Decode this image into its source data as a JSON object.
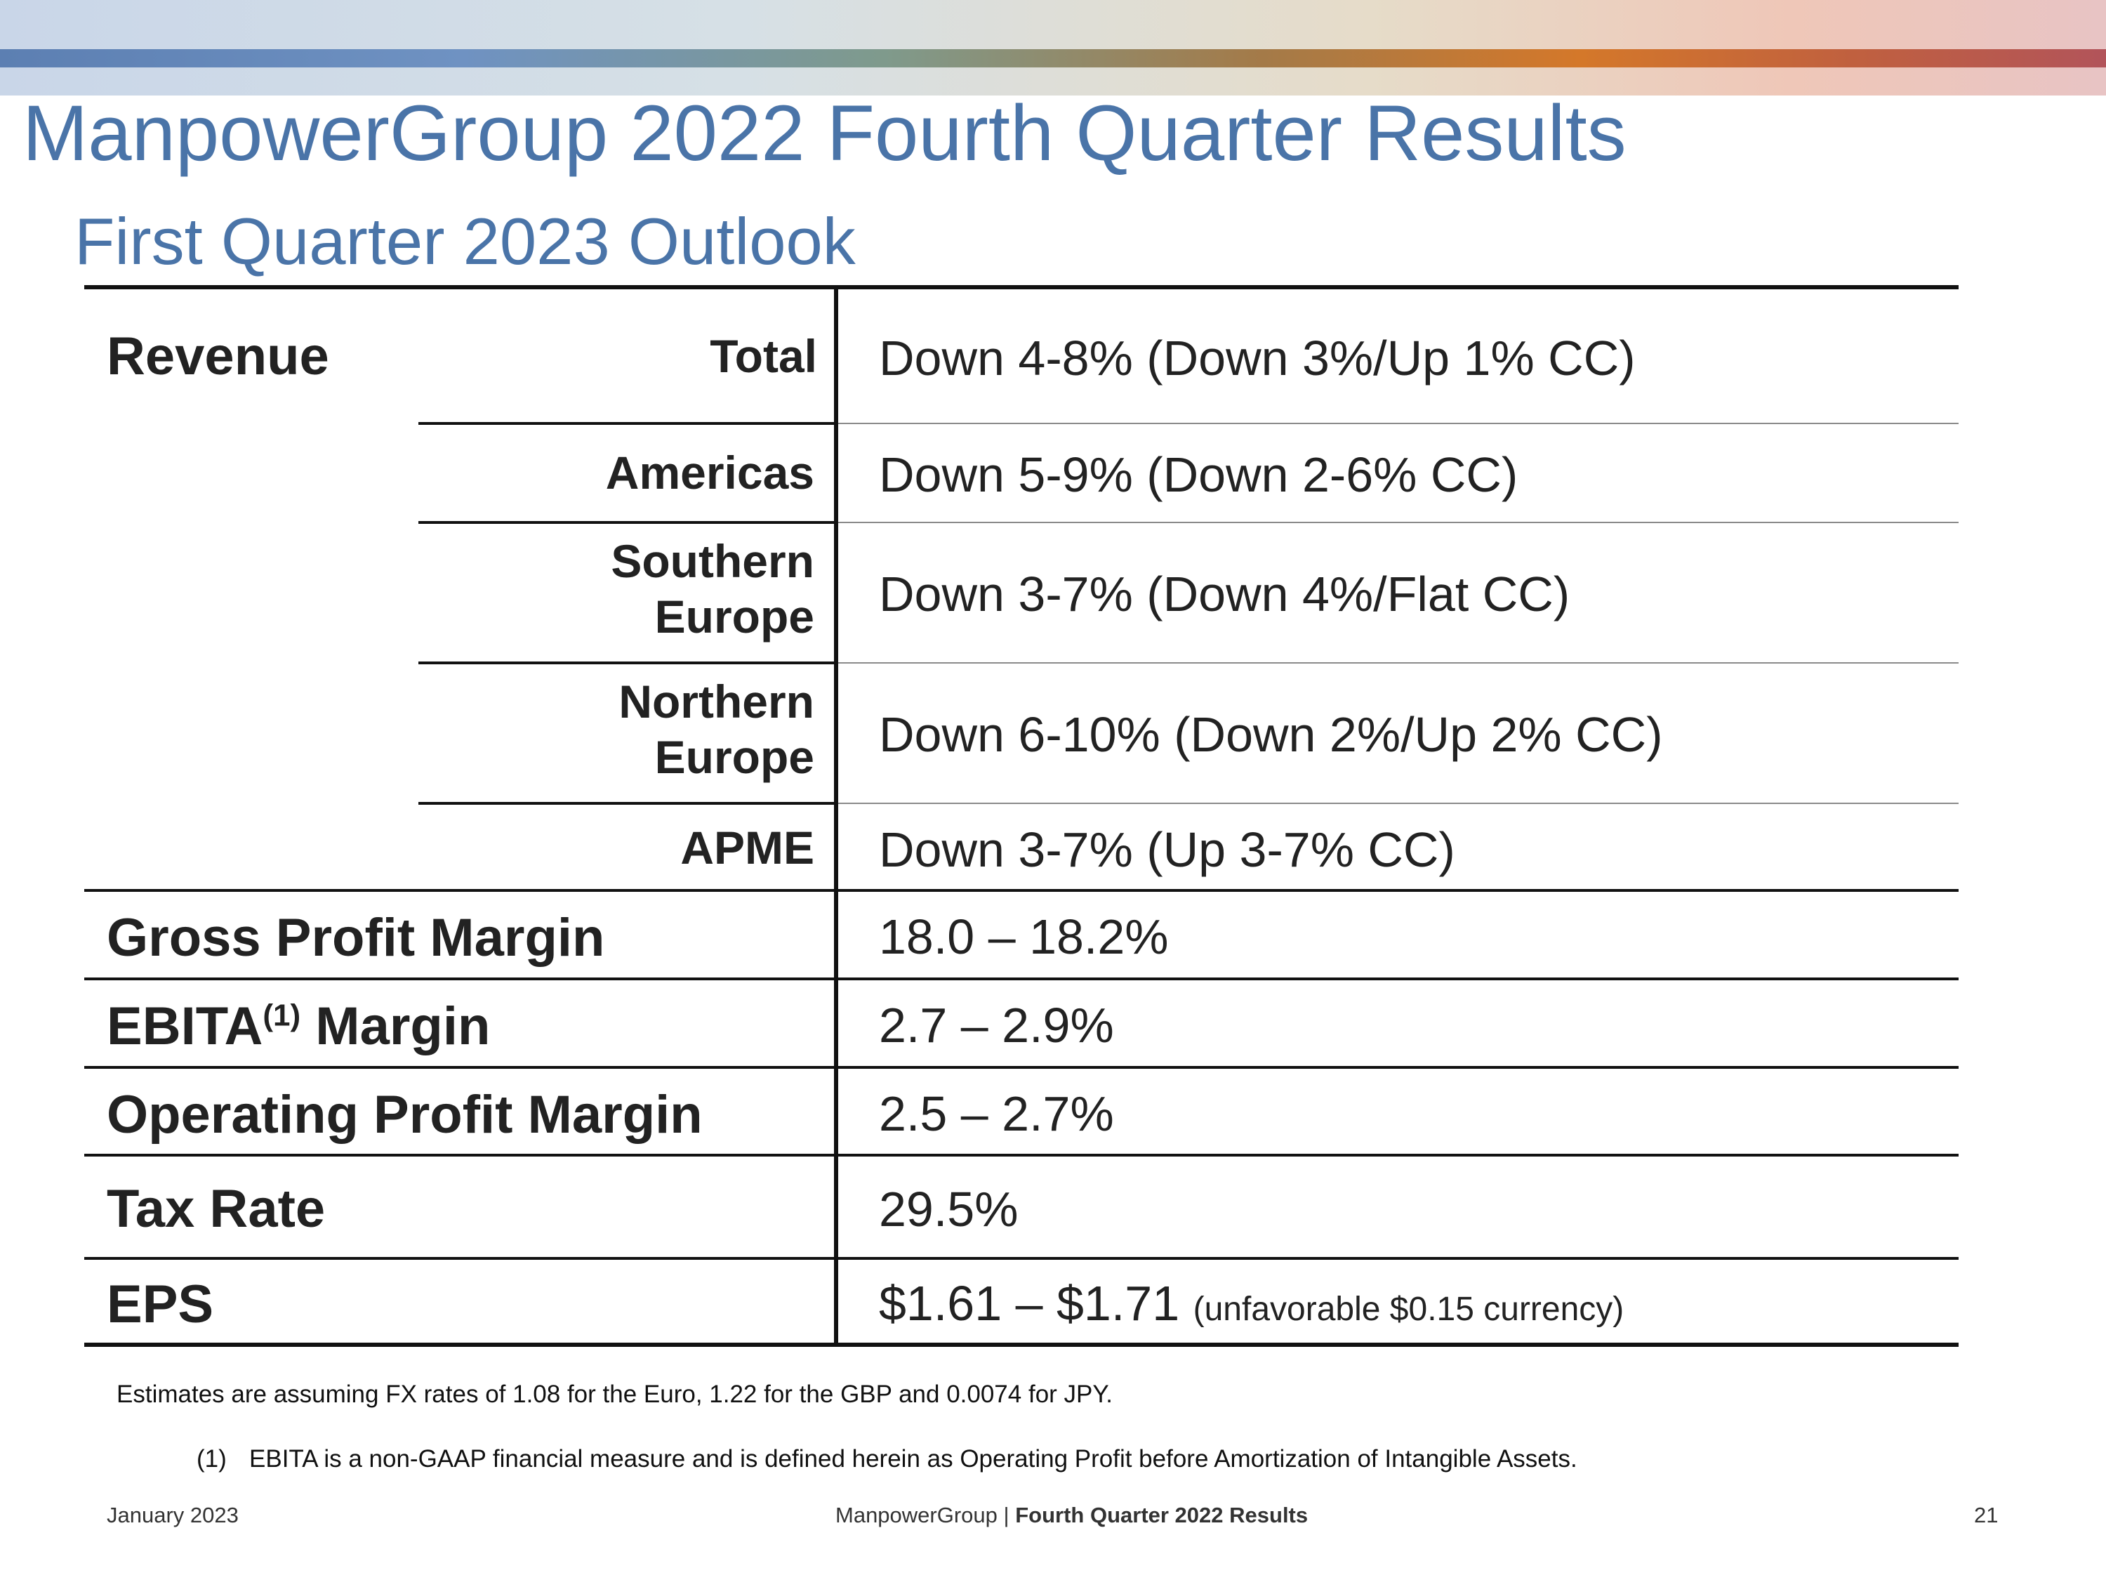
{
  "header": {
    "title": "ManpowerGroup 2022 Fourth Quarter Results",
    "subtitle": "First Quarter 2023 Outlook"
  },
  "table": {
    "revenue_label": "Revenue",
    "revenue_rows": [
      {
        "segment": "Total",
        "value": "Down 4-8% (Down 3%/Up 1% CC)"
      },
      {
        "segment": "Americas",
        "value": "Down 5-9% (Down 2-6% CC)"
      },
      {
        "segment_line1": "Southern",
        "segment_line2": "Europe",
        "value": "Down 3-7% (Down 4%/Flat CC)"
      },
      {
        "segment_line1": "Northern",
        "segment_line2": "Europe",
        "value": "Down 6-10% (Down 2%/Up 2% CC)"
      },
      {
        "segment": "APME",
        "value": "Down 3-7% (Up 3-7% CC)"
      }
    ],
    "gross_profit_margin": {
      "label": "Gross Profit Margin",
      "value": "18.0 – 18.2%"
    },
    "ebita_margin": {
      "label_prefix": "EBITA",
      "footnote_ref": "(1)",
      "label_suffix": " Margin",
      "value": "2.7 – 2.9%"
    },
    "operating_profit_margin": {
      "label": "Operating Profit Margin",
      "value": "2.5 – 2.7%"
    },
    "tax_rate": {
      "label": "Tax Rate",
      "value": "29.5%"
    },
    "eps": {
      "label": "EPS",
      "value": "$1.61 – $1.71",
      "note": "(unfavorable $0.15 currency)"
    }
  },
  "notes": {
    "fx": "Estimates are assuming FX rates of 1.08 for the Euro, 1.22 for the GBP and 0.0074 for JPY.",
    "footnote_marker": "(1)",
    "footnote_text": "EBITA is a non-GAAP financial measure and is defined herein as Operating Profit before Amortization of Intangible Assets."
  },
  "footer": {
    "date": "January 2023",
    "company": "ManpowerGroup",
    "separator": "|",
    "report": "Fourth Quarter 2022 Results",
    "page_number": "21"
  }
}
